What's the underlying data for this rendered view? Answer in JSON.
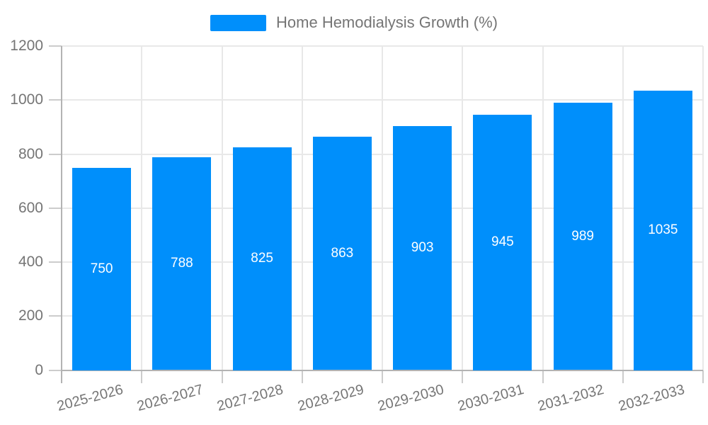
{
  "chart_data": {
    "type": "bar",
    "title": "",
    "categories": [
      "2025-2026",
      "2026-2027",
      "2027-2028",
      "2028-2029",
      "2029-2030",
      "2030-2031",
      "2031-2032",
      "2032-2033"
    ],
    "series": [
      {
        "name": "Home Hemodialysis Growth (%)",
        "values": [
          750,
          788,
          825,
          863,
          903,
          945,
          989,
          1035
        ]
      }
    ],
    "data_labels": [
      "750",
      "788",
      "825",
      "863",
      "903",
      "945",
      "989",
      "1035"
    ],
    "xlabel": "",
    "ylabel": "",
    "ylim": [
      0,
      1200
    ],
    "yticks": [
      0,
      200,
      400,
      600,
      800,
      1000,
      1200
    ],
    "ytick_labels": [
      "0",
      "200",
      "400",
      "600",
      "800",
      "1000",
      "1200"
    ],
    "grid": true,
    "legend_position": "top",
    "colors": {
      "bar": "#008FFB",
      "axis_label": "#757575",
      "value_label": "#ffffff",
      "gridline": "#e8e8e8",
      "axis_line": "#b3b3b3",
      "tick": "#cccccc"
    }
  }
}
